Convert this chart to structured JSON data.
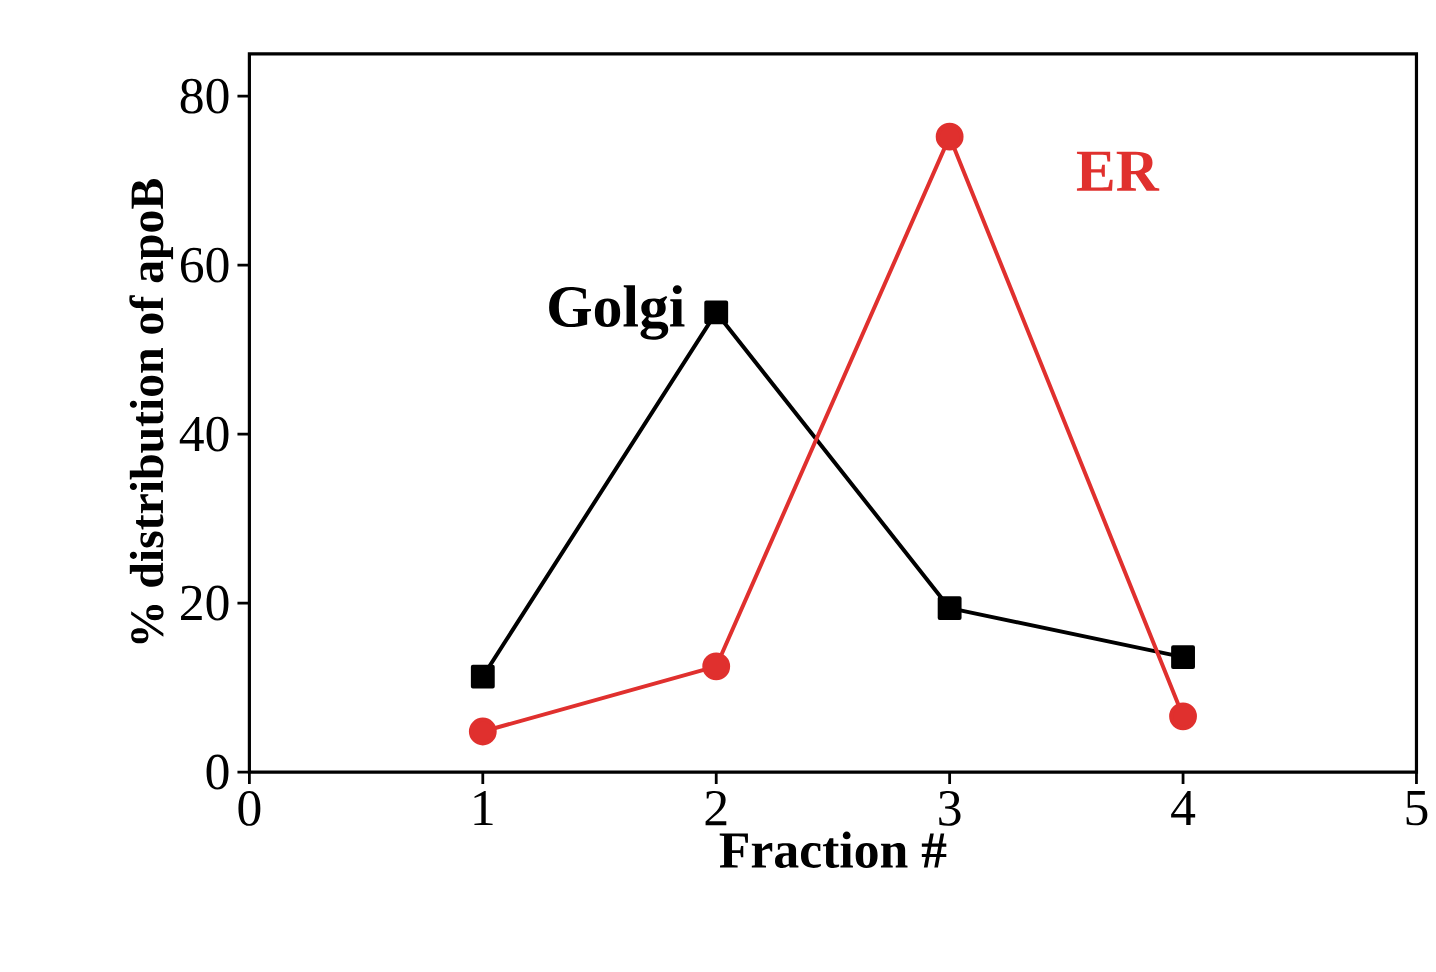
{
  "chart_data": {
    "type": "line",
    "xlabel": "Fraction #",
    "ylabel": "% distribution of apoB",
    "x": [
      1,
      2,
      3,
      4
    ],
    "series": [
      {
        "name": "Golgi",
        "color": "#000000",
        "marker": "square",
        "values": [
          11.3,
          54.4,
          19.4,
          13.6
        ]
      },
      {
        "name": "ER",
        "color": "#e0302e",
        "marker": "circle",
        "values": [
          4.8,
          12.5,
          75.2,
          6.6
        ]
      }
    ],
    "xlim": [
      0,
      5
    ],
    "xticks": [
      0,
      1,
      2,
      3,
      4,
      5
    ],
    "ylim": [
      0,
      85
    ],
    "yticks": [
      0,
      20,
      40,
      60,
      80
    ],
    "grid": false,
    "legend": false,
    "line_style": "solid"
  }
}
